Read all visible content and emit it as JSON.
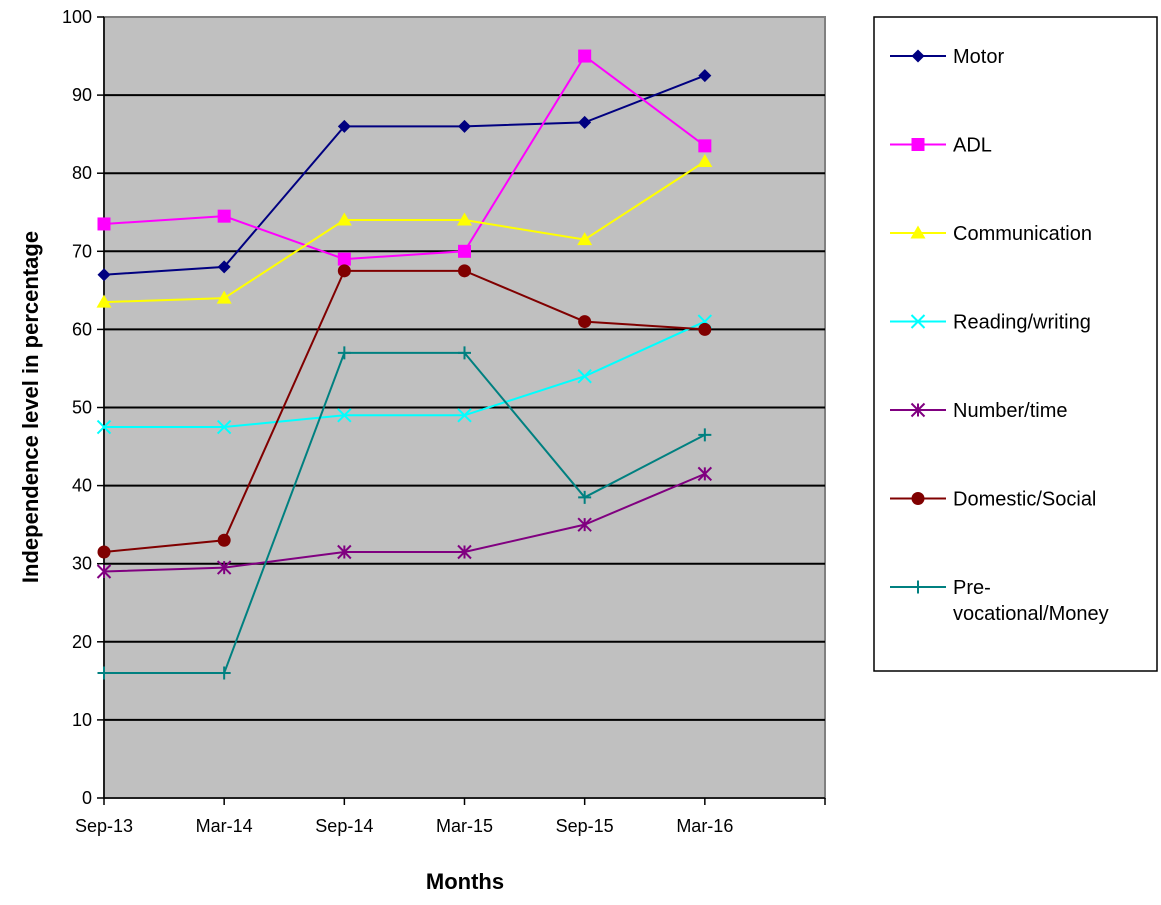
{
  "chart_data": {
    "type": "line",
    "title": "",
    "xlabel": "Months",
    "ylabel": "Independence level in percentage",
    "categories": [
      "Sep-13",
      "Mar-14",
      "Sep-14",
      "Mar-15",
      "Sep-15",
      "Mar-16"
    ],
    "ylim": [
      0,
      100
    ],
    "yticks": [
      0,
      10,
      20,
      30,
      40,
      50,
      60,
      70,
      80,
      90,
      100
    ],
    "grid": true,
    "legend_position": "right",
    "plot_background": "#c0c0c0",
    "series": [
      {
        "name": "Motor",
        "color": "#000080",
        "marker": "diamond",
        "values": [
          67,
          68,
          86,
          86,
          86.5,
          92.5
        ]
      },
      {
        "name": "ADL",
        "color": "#ff00ff",
        "marker": "square",
        "values": [
          73.5,
          74.5,
          69,
          70,
          95,
          83.5
        ]
      },
      {
        "name": "Communication",
        "color": "#ffff00",
        "marker": "triangle",
        "values": [
          63.5,
          64,
          74,
          74,
          71.5,
          81.5
        ]
      },
      {
        "name": "Reading/writing",
        "color": "#00ffff",
        "marker": "x",
        "values": [
          47.5,
          47.5,
          49,
          49,
          54,
          61
        ]
      },
      {
        "name": "Number/time",
        "color": "#800080",
        "marker": "star",
        "values": [
          29,
          29.5,
          31.5,
          31.5,
          35,
          41.5
        ]
      },
      {
        "name": "Domestic/Social",
        "color": "#800000",
        "marker": "circle",
        "values": [
          31.5,
          33,
          67.5,
          67.5,
          61,
          60
        ]
      },
      {
        "name": "Pre-vocational/Money",
        "label_lines": [
          "Pre-",
          "vocational/Money"
        ],
        "color": "#008080",
        "marker": "plus",
        "values": [
          16,
          16,
          57,
          57,
          38.5,
          46.5
        ]
      }
    ]
  }
}
